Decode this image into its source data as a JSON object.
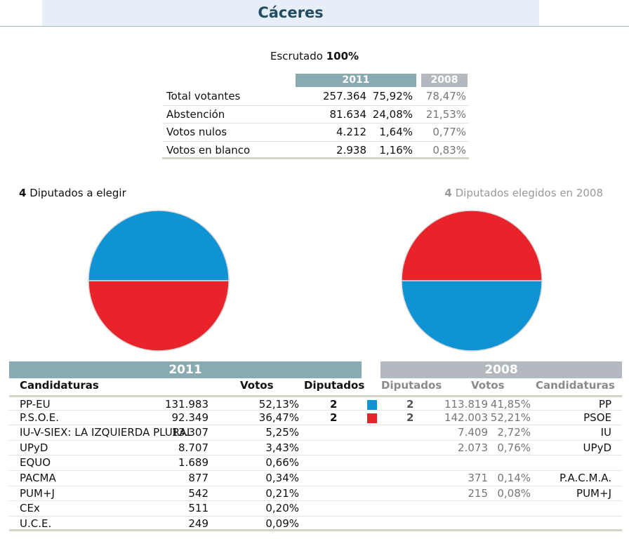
{
  "title": "Cáceres",
  "escrutado": {
    "label": "Escrutado",
    "value": "100%"
  },
  "summary": {
    "year_current": "2011",
    "year_previous": "2008",
    "rows": [
      {
        "label": "Total votantes",
        "votes": "257.364",
        "pct": "75,92%",
        "prev": "78,47%"
      },
      {
        "label": "Abstención",
        "votes": "81.634",
        "pct": "24,08%",
        "prev": "21,53%"
      },
      {
        "label": "Votos nulos",
        "votes": "4.212",
        "pct": "1,64%",
        "prev": "0,77%"
      },
      {
        "label": "Votos en blanco",
        "votes": "2.938",
        "pct": "1,16%",
        "prev": "0,83%"
      }
    ]
  },
  "seats_current": {
    "count": "4",
    "text": "Diputados a elegir"
  },
  "seats_previous": {
    "count": "4",
    "text": "Diputados elegidos en 2008"
  },
  "colors": {
    "PP": "#0f93d4",
    "PSOE": "#e8232a",
    "header_2011": "#88aab0",
    "header_2008": "#b4b9c0"
  },
  "chart_data": [
    {
      "type": "pie",
      "title": "",
      "labels": [
        "PP-EU",
        "P.S.O.E."
      ],
      "values": [
        2,
        2
      ],
      "colors": [
        "#0f93d4",
        "#e8232a"
      ]
    },
    {
      "type": "pie",
      "title": "",
      "labels": [
        "PSOE",
        "PP"
      ],
      "values": [
        2,
        2
      ],
      "colors": [
        "#e8232a",
        "#0f93d4"
      ]
    }
  ],
  "results": {
    "year_current": "2011",
    "year_previous": "2008",
    "headers": {
      "candidaturas": "Candidaturas",
      "votos": "Votos",
      "diputados": "Diputados"
    },
    "rows": [
      {
        "name": "PP-EU",
        "votes": "131.983",
        "pct": "52,13%",
        "dip": "2",
        "color": "#0f93d4",
        "odip": "2",
        "ovotes": "113.819",
        "opct": "41,85%",
        "oname": "PP"
      },
      {
        "name": "P.S.O.E.",
        "votes": "92.349",
        "pct": "36,47%",
        "dip": "2",
        "color": "#e8232a",
        "odip": "2",
        "ovotes": "142.003",
        "opct": "52,21%",
        "oname": "PSOE"
      },
      {
        "name": "IU-V-SIEX: LA IZQUIERDA PLURAL",
        "votes": "13.307",
        "pct": "5,25%",
        "dip": "",
        "color": "",
        "odip": "",
        "ovotes": "7.409",
        "opct": "2,72%",
        "oname": "IU"
      },
      {
        "name": "UPyD",
        "votes": "8.707",
        "pct": "3,43%",
        "dip": "",
        "color": "",
        "odip": "",
        "ovotes": "2.073",
        "opct": "0,76%",
        "oname": "UPyD"
      },
      {
        "name": "EQUO",
        "votes": "1.689",
        "pct": "0,66%",
        "dip": "",
        "color": "",
        "odip": "",
        "ovotes": "",
        "opct": "",
        "oname": ""
      },
      {
        "name": "PACMA",
        "votes": "877",
        "pct": "0,34%",
        "dip": "",
        "color": "",
        "odip": "",
        "ovotes": "371",
        "opct": "0,14%",
        "oname": "P.A.C.M.A."
      },
      {
        "name": "PUM+J",
        "votes": "542",
        "pct": "0,21%",
        "dip": "",
        "color": "",
        "odip": "",
        "ovotes": "215",
        "opct": "0,08%",
        "oname": "PUM+J"
      },
      {
        "name": "CEx",
        "votes": "511",
        "pct": "0,20%",
        "dip": "",
        "color": "",
        "odip": "",
        "ovotes": "",
        "opct": "",
        "oname": ""
      },
      {
        "name": "U.C.E.",
        "votes": "249",
        "pct": "0,09%",
        "dip": "",
        "color": "",
        "odip": "",
        "ovotes": "",
        "opct": "",
        "oname": ""
      }
    ]
  }
}
